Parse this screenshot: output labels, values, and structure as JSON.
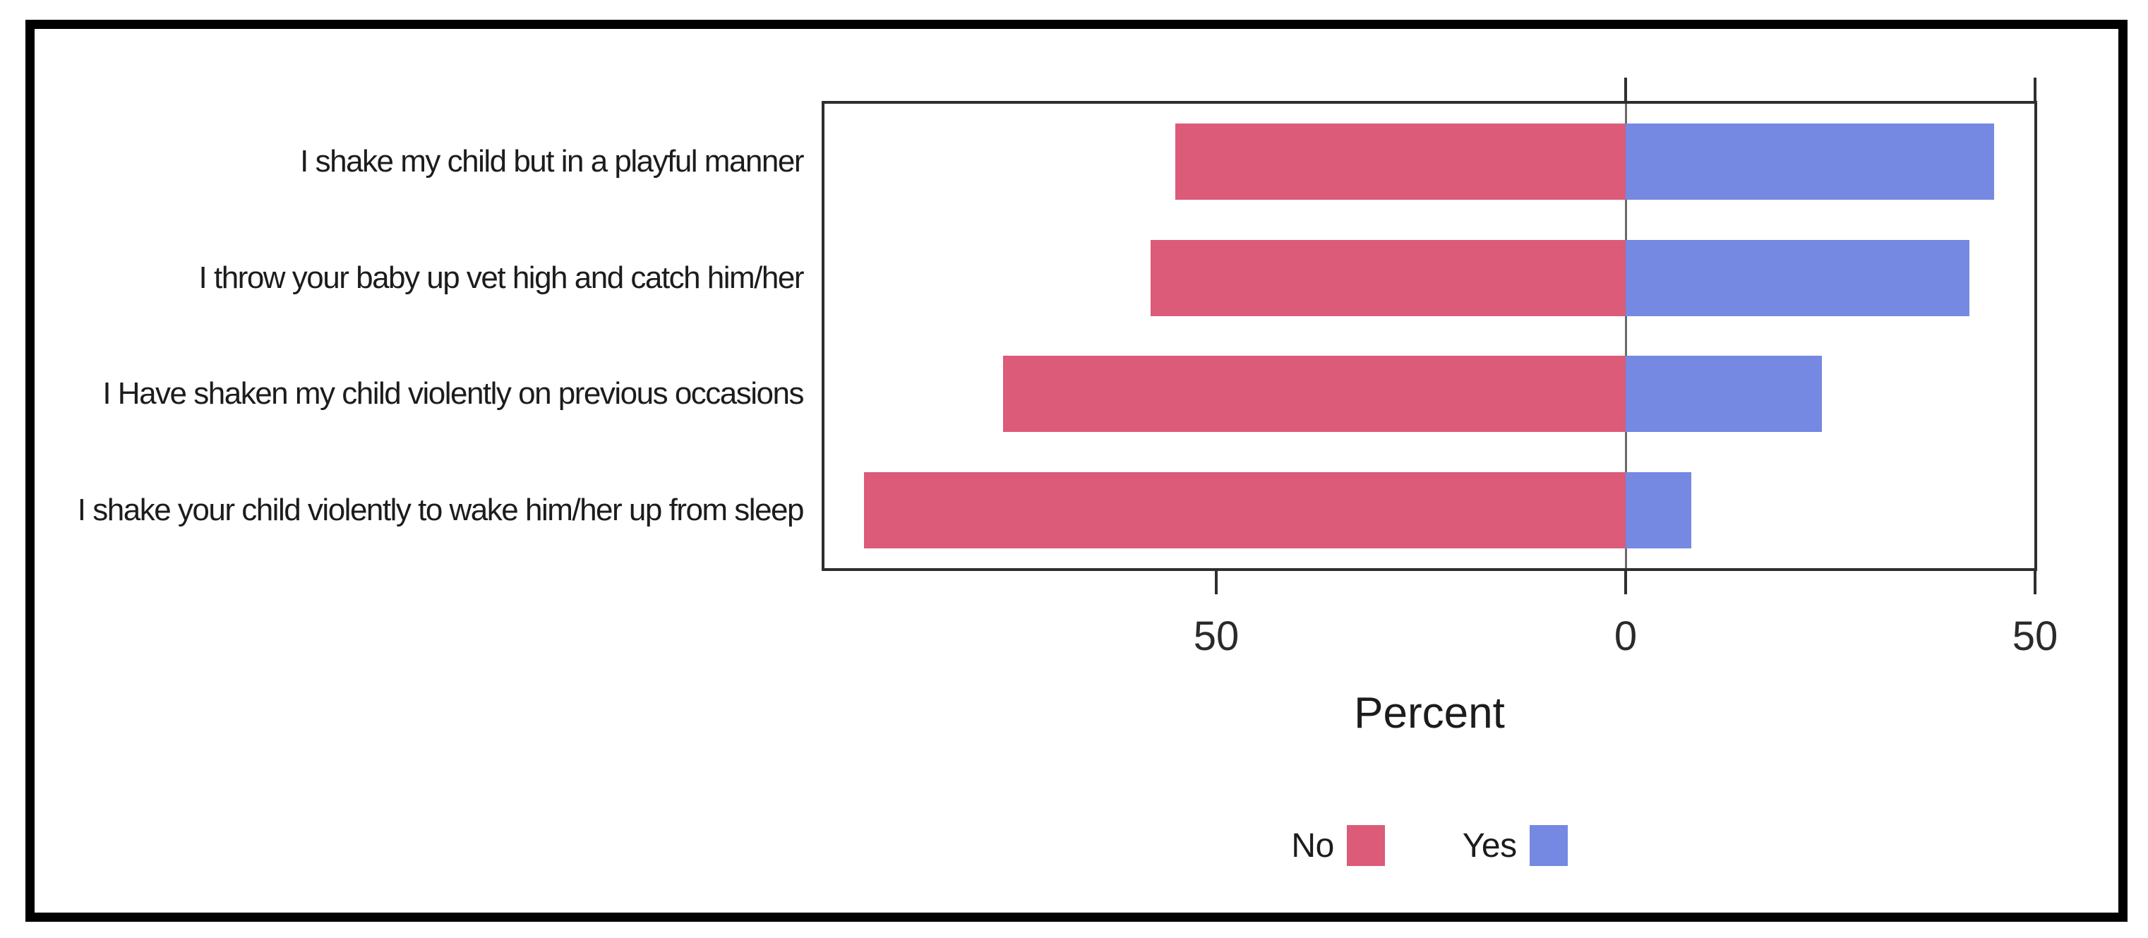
{
  "chart_data": {
    "type": "bar",
    "orientation": "horizontal-diverging",
    "title": "",
    "xlabel": "Percent",
    "categories": [
      "I shake my child but in a playful manner",
      "I throw your baby up vet high and catch him/her",
      "I Have shaken my child violently on previous occasions",
      "I shake your child violently to wake him/her up from sleep"
    ],
    "series": [
      {
        "name": "No",
        "direction": "left",
        "color": "#db5b78",
        "values": [
          55,
          58,
          76,
          93
        ]
      },
      {
        "name": "Yes",
        "direction": "right",
        "color": "#7588e2",
        "values": [
          45,
          42,
          24,
          8
        ]
      }
    ],
    "axis": {
      "ticks": [
        -50,
        0,
        50
      ],
      "tick_labels": [
        "50",
        "0",
        "50"
      ],
      "top_ticks": [
        0,
        50
      ],
      "xlim": [
        -98,
        50
      ],
      "unit": "percent",
      "grid": "zero-reference-line-only"
    },
    "legend": {
      "position": "bottom-center",
      "entries": [
        {
          "label": "No",
          "color": "#db5b78"
        },
        {
          "label": "Yes",
          "color": "#7588e2"
        }
      ]
    },
    "colors": {
      "no": "#db5b78",
      "yes": "#7588e2",
      "plot_border": "#2e2e2e",
      "outer_frame": "#000000",
      "background": "#ffffff"
    }
  }
}
